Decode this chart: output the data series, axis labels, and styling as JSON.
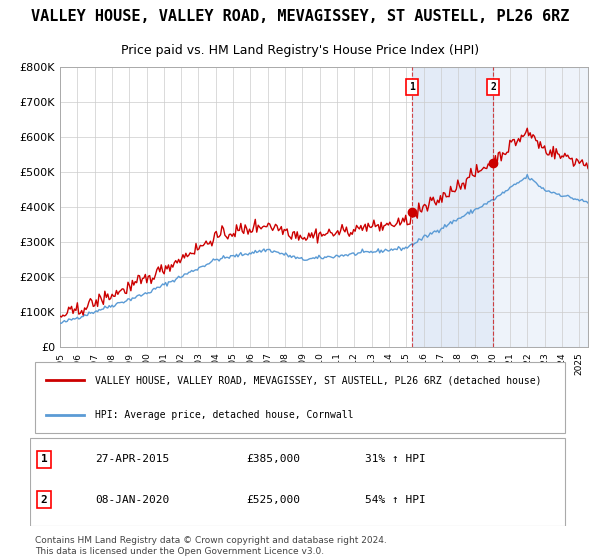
{
  "title": "VALLEY HOUSE, VALLEY ROAD, MEVAGISSEY, ST AUSTELL, PL26 6RZ",
  "subtitle": "Price paid vs. HM Land Registry's House Price Index (HPI)",
  "xlabel": "",
  "ylabel": "",
  "ylim": [
    0,
    800000
  ],
  "yticks": [
    0,
    100000,
    200000,
    300000,
    400000,
    500000,
    600000,
    700000,
    800000
  ],
  "ytick_labels": [
    "£0",
    "£100K",
    "£200K",
    "£300K",
    "£400K",
    "£500K",
    "£600K",
    "£700K",
    "£800K"
  ],
  "x_start_year": 1995,
  "x_end_year": 2025,
  "hpi_color": "#5b9bd5",
  "house_color": "#cc0000",
  "purchase1_year": 2015.32,
  "purchase1_price": 385000,
  "purchase2_year": 2020.03,
  "purchase2_price": 525000,
  "purchase1_label": "1",
  "purchase2_label": "2",
  "legend_house": "VALLEY HOUSE, VALLEY ROAD, MEVAGISSEY, ST AUSTELL, PL26 6RZ (detached house)",
  "legend_hpi": "HPI: Average price, detached house, Cornwall",
  "annotation1_date": "27-APR-2015",
  "annotation1_price": "£385,000",
  "annotation1_hpi": "31% ↑ HPI",
  "annotation2_date": "08-JAN-2020",
  "annotation2_price": "£525,000",
  "annotation2_hpi": "54% ↑ HPI",
  "footer": "Contains HM Land Registry data © Crown copyright and database right 2024.\nThis data is licensed under the Open Government Licence v3.0.",
  "background_color": "#f0f4fa",
  "plot_bg_color": "#ffffff",
  "grid_color": "#cccccc",
  "title_fontsize": 11,
  "subtitle_fontsize": 9,
  "tick_fontsize": 8,
  "legend_fontsize": 8
}
